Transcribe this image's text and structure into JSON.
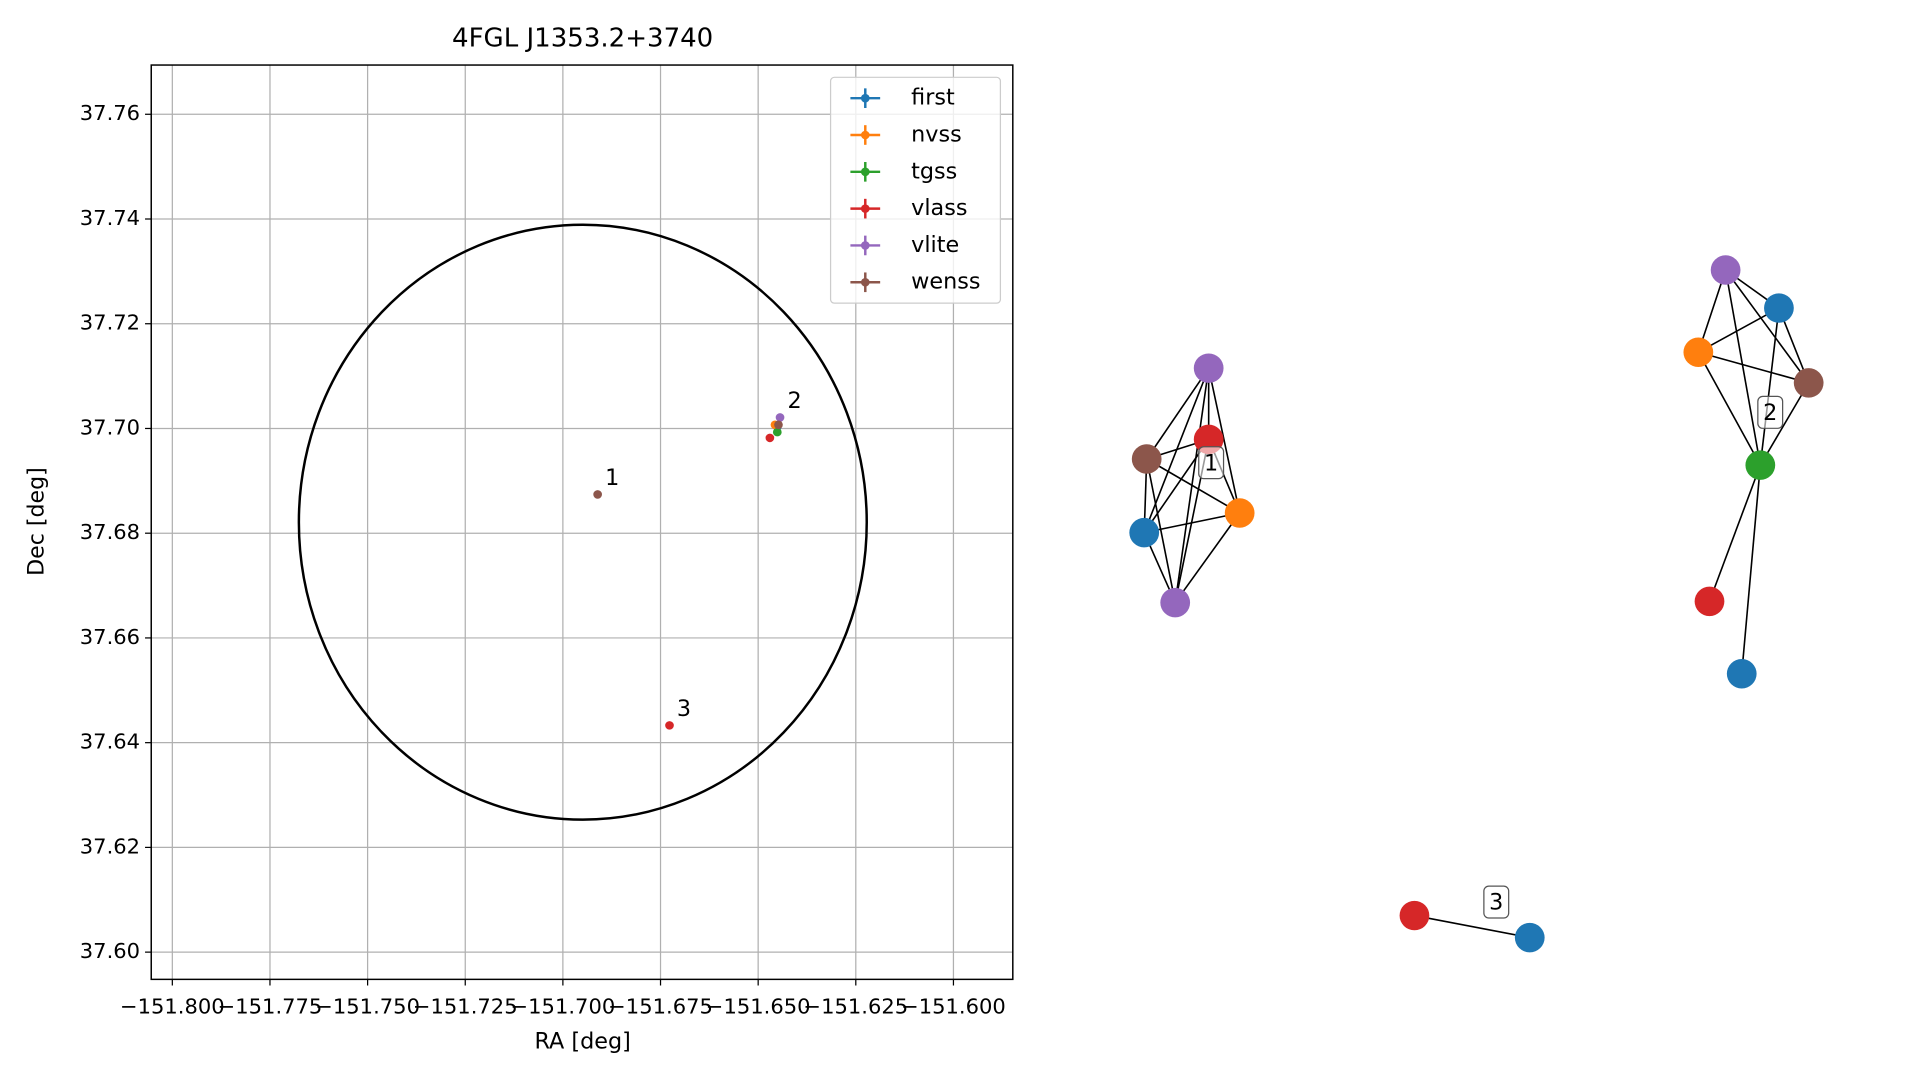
{
  "chart_data": {
    "type": "scatter",
    "title": "4FGL J1353.2+3740",
    "x_label": "RA [deg]",
    "y_label": "Dec [deg]",
    "xlim": [
      -151.8054,
      -151.5848
    ],
    "ylim": [
      37.5948,
      37.7694
    ],
    "xticks": [
      {
        "value": -151.8,
        "label": "−151.800"
      },
      {
        "value": -151.775,
        "label": "−151.775"
      },
      {
        "value": -151.75,
        "label": "−151.750"
      },
      {
        "value": -151.725,
        "label": "−151.725"
      },
      {
        "value": -151.7,
        "label": "−151.700"
      },
      {
        "value": -151.675,
        "label": "−151.675"
      },
      {
        "value": -151.65,
        "label": "−151.650"
      },
      {
        "value": -151.625,
        "label": "−151.625"
      },
      {
        "value": -151.6,
        "label": "−151.600"
      }
    ],
    "yticks": [
      {
        "value": 37.6,
        "label": "37.60"
      },
      {
        "value": 37.62,
        "label": "37.62"
      },
      {
        "value": 37.64,
        "label": "37.64"
      },
      {
        "value": 37.66,
        "label": "37.66"
      },
      {
        "value": 37.68,
        "label": "37.68"
      },
      {
        "value": 37.7,
        "label": "37.70"
      },
      {
        "value": 37.72,
        "label": "37.72"
      },
      {
        "value": 37.74,
        "label": "37.74"
      },
      {
        "value": 37.76,
        "label": "37.76"
      }
    ],
    "grid": true,
    "legend": "upper right",
    "region": {
      "ra": -151.6949,
      "dec": 37.6821,
      "ra_radius": 0.0727,
      "dec_radius": 0.0568,
      "color": "#000000"
    },
    "series": [
      {
        "name": "first",
        "color": "#1f77b4",
        "x": [
          -151.6451
        ],
        "y": [
          37.7003
        ]
      },
      {
        "name": "nvss",
        "color": "#ff7f0e",
        "x": [
          -151.6457
        ],
        "y": [
          37.7007
        ]
      },
      {
        "name": "tgss",
        "color": "#2ca02c",
        "x": [
          -151.6451
        ],
        "y": [
          37.6993
        ]
      },
      {
        "name": "vlass",
        "color": "#d62728",
        "x": [
          -151.647,
          -151.6727
        ],
        "y": [
          37.6982,
          37.6433
        ]
      },
      {
        "name": "vlite",
        "color": "#9467bd",
        "x": [
          -151.6444
        ],
        "y": [
          37.7021
        ]
      },
      {
        "name": "wenss",
        "color": "#8c564b",
        "x": [
          -151.6448,
          -151.6911
        ],
        "y": [
          37.7007,
          37.6874
        ]
      }
    ],
    "annotations": [
      {
        "text": "1",
        "x": -151.6911,
        "y": 37.6874
      },
      {
        "text": "2",
        "x": -151.6444,
        "y": 37.7021
      },
      {
        "text": "3",
        "x": -151.6727,
        "y": 37.6433
      }
    ]
  },
  "graph": {
    "labels": [
      "1",
      "2",
      "3"
    ],
    "nodes": [
      {
        "color": "#9467bd",
        "group": 0
      },
      {
        "color": "#d62728",
        "group": 0
      },
      {
        "color": "#8c564b",
        "group": 0
      },
      {
        "color": "#ff7f0e",
        "group": 0
      },
      {
        "color": "#1f77b4",
        "group": 0
      },
      {
        "color": "#9467bd",
        "group": 0
      },
      {
        "color": "#9467bd",
        "group": 1
      },
      {
        "color": "#1f77b4",
        "group": 1
      },
      {
        "color": "#ff7f0e",
        "group": 1
      },
      {
        "color": "#8c564b",
        "group": 1
      },
      {
        "color": "#2ca02c",
        "group": 1
      },
      {
        "color": "#d62728",
        "group": 1
      },
      {
        "color": "#1f77b4",
        "group": 1
      },
      {
        "color": "#d62728",
        "group": 2
      },
      {
        "color": "#1f77b4",
        "group": 2
      }
    ],
    "edges": [
      [
        0,
        1
      ],
      [
        0,
        2
      ],
      [
        0,
        3
      ],
      [
        0,
        4
      ],
      [
        0,
        5
      ],
      [
        1,
        2
      ],
      [
        1,
        3
      ],
      [
        1,
        4
      ],
      [
        1,
        5
      ],
      [
        2,
        3
      ],
      [
        2,
        4
      ],
      [
        2,
        5
      ],
      [
        3,
        4
      ],
      [
        3,
        5
      ],
      [
        4,
        5
      ],
      [
        6,
        7
      ],
      [
        6,
        8
      ],
      [
        6,
        9
      ],
      [
        6,
        10
      ],
      [
        7,
        8
      ],
      [
        7,
        9
      ],
      [
        7,
        10
      ],
      [
        8,
        9
      ],
      [
        8,
        10
      ],
      [
        9,
        10
      ],
      [
        10,
        11
      ],
      [
        10,
        12
      ],
      [
        13,
        14
      ]
    ]
  }
}
